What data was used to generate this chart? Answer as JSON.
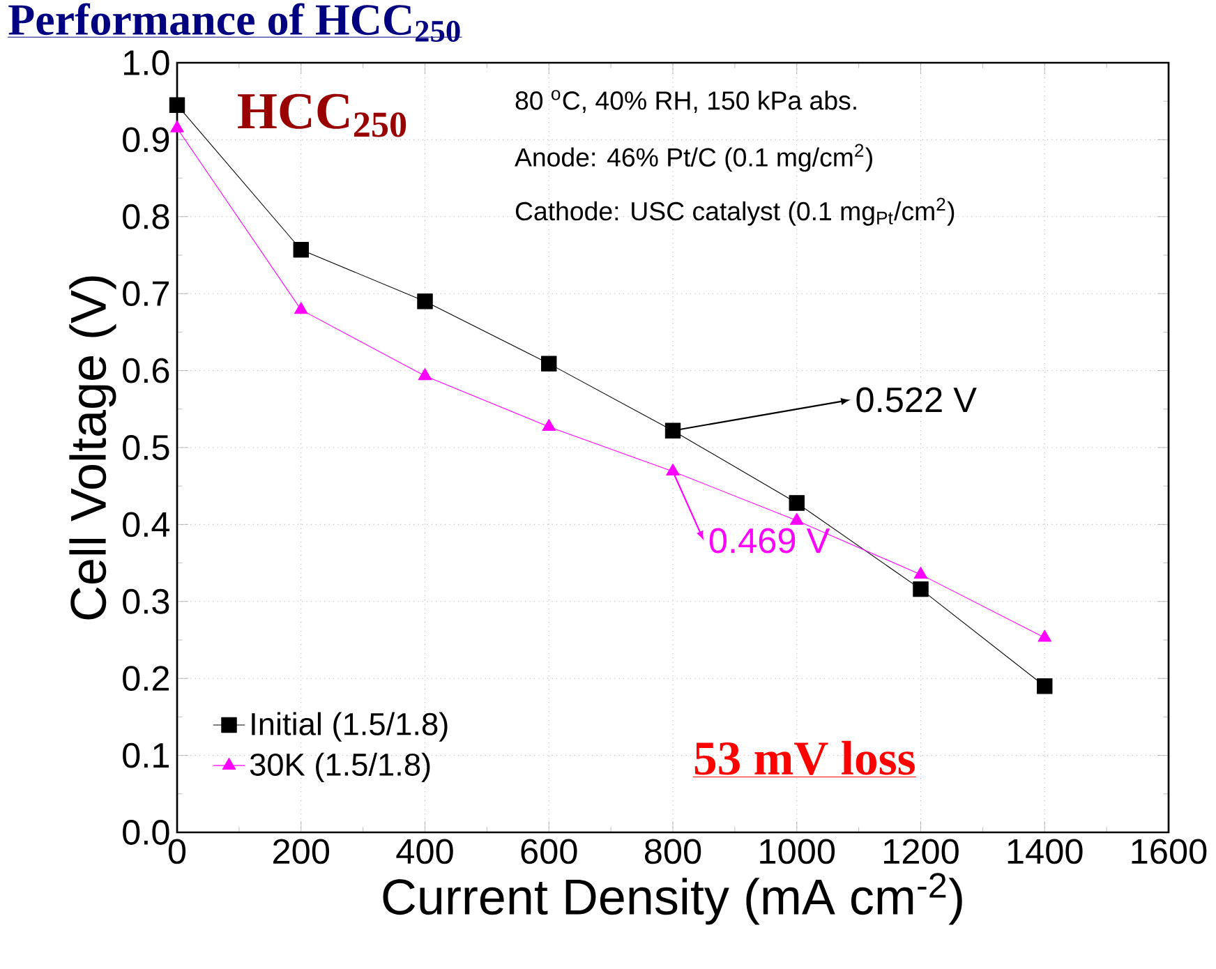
{
  "chart_data": {
    "type": "line",
    "title": "Performance of HCC$_{250}$",
    "xlabel": "Current Density (mA cm$^{-2}$)",
    "ylabel": "Cell Voltage (V)",
    "x": [
      0,
      200,
      400,
      600,
      800,
      1000,
      1200,
      1400
    ],
    "series": [
      {
        "name": "Initial (1.5/1.8)",
        "color": "#000000",
        "marker": "square",
        "values": [
          0.945,
          0.757,
          0.69,
          0.609,
          0.522,
          0.428,
          0.316,
          0.19
        ]
      },
      {
        "name": "30K (1.5/1.8)",
        "color": "#ff00ff",
        "marker": "triangle",
        "values": [
          0.915,
          0.679,
          0.593,
          0.527,
          0.469,
          0.405,
          0.335,
          0.253
        ]
      }
    ],
    "xlim": [
      0,
      1600
    ],
    "xticks": [
      0,
      200,
      400,
      600,
      800,
      1000,
      1200,
      1400,
      1600
    ],
    "ylim": [
      0,
      1
    ],
    "yticks": [
      {
        "value": 0,
        "label": "0.0"
      },
      0.1,
      0.2,
      0.3,
      0.4,
      0.5,
      0.6,
      0.7,
      0.8,
      0.9,
      {
        "value": 1,
        "label": "1.0"
      }
    ],
    "grid": true,
    "legend": "bottom left",
    "line_style": "solid",
    "annotations": [
      "HCC$_{250}$",
      "80 $^{o}$C, 40% RH, 150 kPa abs.",
      "Anode: 46% Pt/C (0.1 mg/cm$^{2}$)",
      "Cathode: USC catalyst (0.1 mg$_{Pt}$/cm$^{2}$)",
      {
        "text": "0.522 V",
        "x": 800,
        "y": 0.522
      },
      {
        "text": "0.469 V",
        "x": 800,
        "y": 0.469
      },
      "53 mV loss"
    ]
  }
}
